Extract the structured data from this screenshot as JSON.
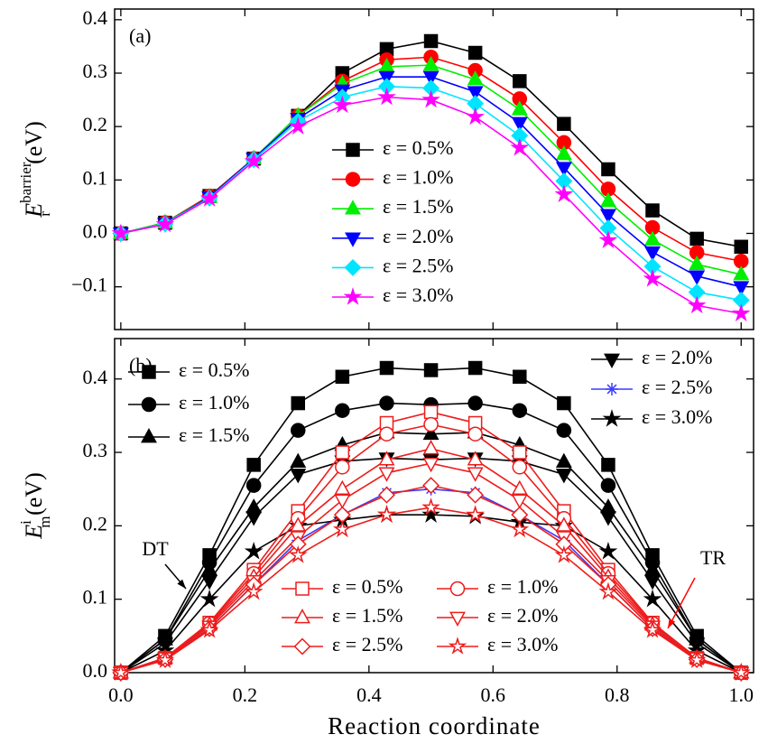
{
  "chart_data": [
    {
      "type": "line",
      "panel_label": "(a)",
      "ylabel": {
        "symbol": "E",
        "subscript": "r",
        "superscript": "barrier",
        "unit": "(eV)"
      },
      "x": [
        0,
        0.0714,
        0.1429,
        0.2143,
        0.2857,
        0.3571,
        0.4286,
        0.5,
        0.5714,
        0.6429,
        0.7143,
        0.7857,
        0.8571,
        0.9286,
        1.0
      ],
      "xlim": [
        -0.01,
        1.02
      ],
      "ylim": [
        -0.18,
        0.42
      ],
      "yticks": [
        {
          "value": -0.1,
          "label": "−0.1"
        },
        {
          "value": 0,
          "label": "0.0"
        },
        0.1,
        0.2,
        0.3,
        0.4
      ],
      "series": [
        {
          "name": "ε = 0.5%",
          "color": "#000000",
          "marker": "square",
          "filled": true,
          "values": [
            0,
            0.02,
            0.07,
            0.14,
            0.22,
            0.3,
            0.345,
            0.36,
            0.338,
            0.285,
            0.205,
            0.12,
            0.043,
            -0.01,
            -0.025
          ]
        },
        {
          "name": "ε = 1.0%",
          "color": "#ff0000",
          "marker": "circle",
          "filled": true,
          "values": [
            0,
            0.02,
            0.07,
            0.14,
            0.22,
            0.285,
            0.325,
            0.33,
            0.305,
            0.252,
            0.17,
            0.083,
            0.011,
            -0.036,
            -0.052
          ]
        },
        {
          "name": "ε = 1.5%",
          "color": "#00ee00",
          "marker": "triangle-up",
          "filled": true,
          "values": [
            0,
            0.02,
            0.068,
            0.14,
            0.22,
            0.28,
            0.312,
            0.315,
            0.288,
            0.232,
            0.148,
            0.06,
            -0.012,
            -0.058,
            -0.077
          ]
        },
        {
          "name": "ε = 2.0%",
          "color": "#0000ff",
          "marker": "triangle-down",
          "filled": true,
          "values": [
            0,
            0.018,
            0.068,
            0.14,
            0.215,
            0.268,
            0.293,
            0.293,
            0.265,
            0.207,
            0.123,
            0.035,
            -0.035,
            -0.08,
            -0.1
          ]
        },
        {
          "name": "ε = 2.5%",
          "color": "#00e5ff",
          "marker": "diamond",
          "filled": true,
          "values": [
            0,
            0.018,
            0.066,
            0.138,
            0.21,
            0.255,
            0.275,
            0.272,
            0.243,
            0.183,
            0.098,
            0.01,
            -0.062,
            -0.11,
            -0.125
          ]
        },
        {
          "name": "ε = 3.0%",
          "color": "#ff00ff",
          "marker": "star",
          "filled": true,
          "values": [
            0,
            0.017,
            0.065,
            0.135,
            0.2,
            0.24,
            0.255,
            0.25,
            0.218,
            0.16,
            0.073,
            -0.013,
            -0.085,
            -0.135,
            -0.15
          ]
        }
      ]
    },
    {
      "type": "line",
      "panel_label": "(b)",
      "xlabel": "Reaction coordinate",
      "ylabel": {
        "symbol": "E",
        "subscript": "m",
        "superscript": "i",
        "unit": "(eV)"
      },
      "x": [
        0,
        0.0714,
        0.1429,
        0.2143,
        0.2857,
        0.3571,
        0.4286,
        0.5,
        0.5714,
        0.6429,
        0.7143,
        0.7857,
        0.8571,
        0.9286,
        1.0
      ],
      "xlim": [
        -0.01,
        1.02
      ],
      "ylim": [
        0,
        0.455
      ],
      "xticks": [
        {
          "value": 0,
          "label": "0.0"
        },
        0.2,
        0.4,
        0.6,
        0.8,
        {
          "value": 1,
          "label": "1.0"
        }
      ],
      "yticks": [
        {
          "value": 0,
          "label": "0.0"
        },
        0.1,
        0.2,
        0.3,
        0.4
      ],
      "annotations": [
        {
          "text": "DT",
          "color": "#000000"
        },
        {
          "text": "TR",
          "color": "#ff0000"
        }
      ],
      "series": [
        {
          "name": "ε = 0.5%",
          "color": "#000000",
          "marker": "square",
          "filled": true,
          "values": [
            0,
            0.05,
            0.16,
            0.283,
            0.367,
            0.403,
            0.415,
            0.412,
            0.415,
            0.403,
            0.367,
            0.283,
            0.16,
            0.05,
            0
          ]
        },
        {
          "name": "ε = 1.0%",
          "color": "#000000",
          "marker": "circle",
          "filled": true,
          "values": [
            0,
            0.045,
            0.15,
            0.255,
            0.33,
            0.357,
            0.367,
            0.365,
            0.367,
            0.357,
            0.33,
            0.255,
            0.15,
            0.045,
            0
          ]
        },
        {
          "name": "ε = 1.5%",
          "color": "#000000",
          "marker": "triangle-up",
          "filled": true,
          "values": [
            0,
            0.045,
            0.14,
            0.225,
            0.287,
            0.31,
            0.327,
            0.325,
            0.327,
            0.31,
            0.287,
            0.225,
            0.14,
            0.045,
            0
          ]
        },
        {
          "name": "ε = 2.0%",
          "color": "#000000",
          "marker": "triangle-down",
          "filled": true,
          "values": [
            0,
            0.04,
            0.125,
            0.212,
            0.27,
            0.288,
            0.292,
            0.29,
            0.292,
            0.288,
            0.27,
            0.212,
            0.125,
            0.04,
            0
          ]
        },
        {
          "name": "ε = 2.5%",
          "color": "#3c3cff",
          "marker": "asterisk",
          "filled": false,
          "values": [
            0,
            0.02,
            0.06,
            0.12,
            0.18,
            0.215,
            0.245,
            0.25,
            0.245,
            0.215,
            0.18,
            0.12,
            0.06,
            0.02,
            0
          ]
        },
        {
          "name": "ε = 3.0%",
          "color": "#000000",
          "marker": "star",
          "filled": true,
          "values": [
            0,
            0.03,
            0.1,
            0.165,
            0.2,
            0.208,
            0.215,
            0.215,
            0.213,
            0.205,
            0.2,
            0.165,
            0.1,
            0.03,
            0
          ]
        },
        {
          "name": "ε = 0.5%",
          "color": "#ee1c1c",
          "marker": "square",
          "filled": false,
          "values": [
            0,
            0.02,
            0.068,
            0.14,
            0.22,
            0.3,
            0.34,
            0.355,
            0.34,
            0.3,
            0.22,
            0.14,
            0.068,
            0.02,
            0
          ]
        },
        {
          "name": "ε = 1.0%",
          "color": "#ee1c1c",
          "marker": "circle",
          "filled": false,
          "values": [
            0,
            0.02,
            0.067,
            0.135,
            0.21,
            0.28,
            0.325,
            0.338,
            0.325,
            0.28,
            0.21,
            0.135,
            0.067,
            0.02,
            0
          ]
        },
        {
          "name": "ε = 1.5%",
          "color": "#ee1c1c",
          "marker": "triangle-up",
          "filled": false,
          "values": [
            0,
            0.02,
            0.065,
            0.13,
            0.2,
            0.25,
            0.29,
            0.305,
            0.29,
            0.25,
            0.2,
            0.13,
            0.065,
            0.02,
            0
          ]
        },
        {
          "name": "ε = 2.0%",
          "color": "#ee1c1c",
          "marker": "triangle-down",
          "filled": false,
          "values": [
            0,
            0.02,
            0.063,
            0.125,
            0.185,
            0.235,
            0.272,
            0.285,
            0.272,
            0.235,
            0.185,
            0.125,
            0.063,
            0.02,
            0
          ]
        },
        {
          "name": "ε = 2.5%",
          "color": "#ee1c1c",
          "marker": "diamond",
          "filled": false,
          "values": [
            0,
            0.018,
            0.06,
            0.12,
            0.175,
            0.215,
            0.242,
            0.255,
            0.242,
            0.215,
            0.175,
            0.12,
            0.06,
            0.018,
            0
          ]
        },
        {
          "name": "ε = 3.0%",
          "color": "#ee1c1c",
          "marker": "star",
          "filled": false,
          "values": [
            0,
            0.017,
            0.058,
            0.11,
            0.16,
            0.195,
            0.215,
            0.225,
            0.215,
            0.195,
            0.16,
            0.11,
            0.058,
            0.017,
            0
          ]
        }
      ]
    }
  ]
}
